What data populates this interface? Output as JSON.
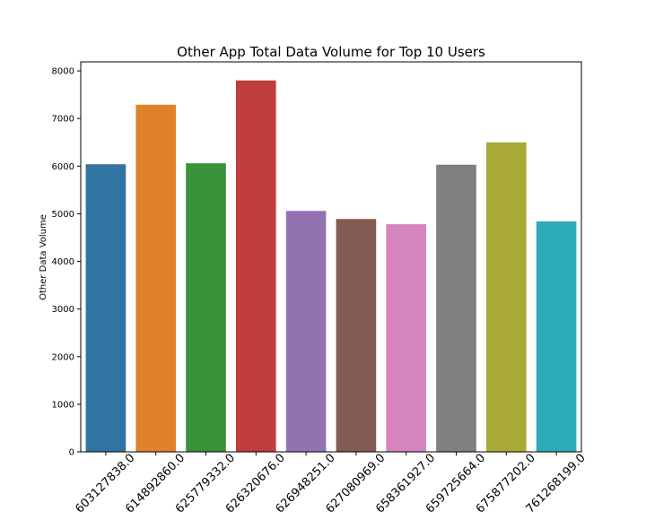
{
  "chart_data": {
    "type": "bar",
    "title": "Other App Total Data Volume for Top 10 Users",
    "xlabel": "",
    "ylabel": "Other Data Volume",
    "categories": [
      "603127838.0",
      "614892860.0",
      "625779332.0",
      "626320676.0",
      "626948251.0",
      "627080969.0",
      "658361927.0",
      "659725664.0",
      "675877202.0",
      "761268199.0"
    ],
    "values": [
      6040,
      7290,
      6060,
      7800,
      5060,
      4890,
      4780,
      6030,
      6500,
      4840
    ],
    "colors": [
      "#3274a1",
      "#e1812c",
      "#3a923a",
      "#c03d3e",
      "#9372b2",
      "#845b53",
      "#d684bd",
      "#7f7f7f",
      "#a9aa35",
      "#2eabb8"
    ],
    "yticks": [
      0,
      1000,
      2000,
      3000,
      4000,
      5000,
      6000,
      7000,
      8000
    ],
    "ylim": [
      0,
      8190
    ],
    "grid": false,
    "legend": "none"
  }
}
